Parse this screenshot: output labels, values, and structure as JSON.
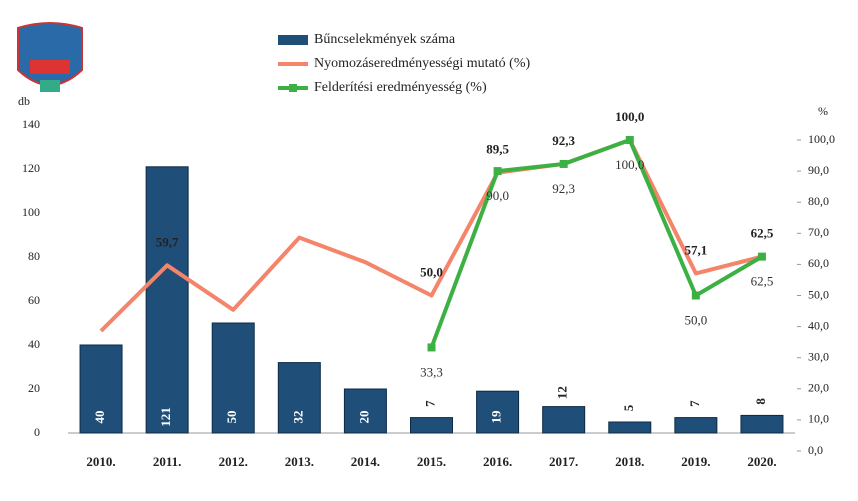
{
  "chart_data": {
    "type": "bar-line",
    "y_label": "db",
    "y2_label": "%",
    "categories": [
      "2010.",
      "2011.",
      "2012.",
      "2013.",
      "2014.",
      "2015.",
      "2016.",
      "2017.",
      "2018.",
      "2019.",
      "2020."
    ],
    "ylim": [
      0,
      140
    ],
    "yticks": [
      0,
      20,
      40,
      60,
      80,
      100,
      120,
      140
    ],
    "y2lim": [
      0,
      100
    ],
    "y2ticks": [
      {
        "value": 0,
        "label": "0,0"
      },
      {
        "value": 10,
        "label": "10,0"
      },
      {
        "value": 20,
        "label": "20,0"
      },
      {
        "value": 30,
        "label": "30,0"
      },
      {
        "value": 40,
        "label": "40,0"
      },
      {
        "value": 50,
        "label": "50,0"
      },
      {
        "value": 60,
        "label": "60,0"
      },
      {
        "value": 70,
        "label": "70,0"
      },
      {
        "value": 80,
        "label": "80,0"
      },
      {
        "value": 90,
        "label": "90,0"
      },
      {
        "value": 100,
        "label": "100,0"
      }
    ],
    "series": [
      {
        "name": "Bűncselekmények száma",
        "type": "bar",
        "color": "#1f4e79",
        "values": [
          40,
          121,
          50,
          32,
          20,
          7,
          19,
          12,
          5,
          7,
          8
        ]
      },
      {
        "name": "Nyomozáseredményességi mutató (%)",
        "type": "line",
        "axis": "y2",
        "color": "#f4846a",
        "values": [
          38.6,
          59.7,
          45.4,
          68.6,
          60.7,
          50.0,
          89.5,
          92.3,
          100.0,
          57.1,
          62.5
        ],
        "value_labels": [
          null,
          "59,7",
          null,
          null,
          null,
          "50,0",
          "89,5",
          "92,3",
          "100,0",
          "57,1",
          "62,5"
        ]
      },
      {
        "name": "Felderítési eredményesség (%)",
        "type": "line",
        "axis": "y2",
        "color": "#3cb043",
        "values": [
          null,
          null,
          null,
          null,
          null,
          33.3,
          90.0,
          92.3,
          100.0,
          50.0,
          62.5
        ],
        "value_labels": [
          null,
          null,
          null,
          null,
          null,
          "33,3",
          "90,0",
          "92,3",
          "100,0",
          "50,0",
          "62,5"
        ]
      }
    ]
  }
}
